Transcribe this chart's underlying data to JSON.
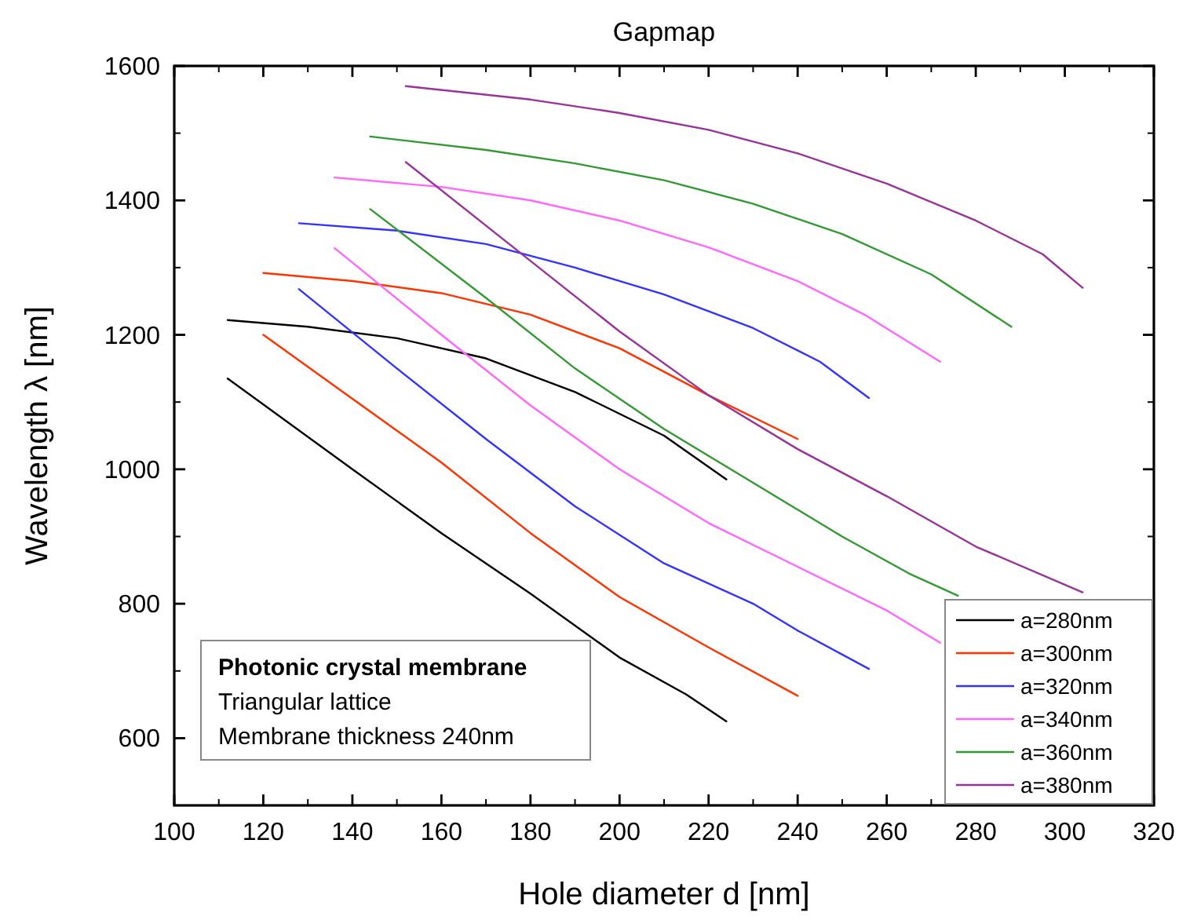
{
  "chart_data": {
    "type": "line",
    "title": "Gapmap",
    "xlabel": "Hole diameter d [nm]",
    "ylabel": "Wavelength λ [nm]",
    "xlim": [
      100,
      320
    ],
    "xticks": [
      100,
      120,
      140,
      160,
      180,
      200,
      220,
      240,
      260,
      280,
      300,
      320
    ],
    "ylim": [
      500,
      1600
    ],
    "yticks": [
      600,
      800,
      1000,
      1200,
      1400,
      1600
    ],
    "legend": "bottom right",
    "marker": "none",
    "line_style": "solid",
    "annotations": [
      "Photonic crystal membrane",
      "Triangular lattice",
      "Membrane thickness 240nm"
    ],
    "series": [
      {
        "name": "a=280nm",
        "color": "#000000",
        "x": [
          112,
          130,
          150,
          170,
          190,
          210,
          224
        ],
        "values": [
          1222,
          1212,
          1195,
          1165,
          1115,
          1050,
          985
        ]
      },
      {
        "color": "#000000",
        "x": [
          112,
          140,
          160,
          180,
          200,
          215,
          224
        ],
        "values": [
          1135,
          1000,
          905,
          815,
          720,
          665,
          625
        ]
      },
      {
        "name": "a=300nm",
        "color": "#ff3300",
        "x": [
          120,
          140,
          160,
          180,
          200,
          220,
          240
        ],
        "values": [
          1292,
          1280,
          1262,
          1230,
          1180,
          1110,
          1045
        ]
      },
      {
        "color": "#ff3300",
        "x": [
          120,
          140,
          160,
          180,
          200,
          220,
          240
        ],
        "values": [
          1200,
          1105,
          1010,
          905,
          810,
          735,
          663
        ]
      },
      {
        "name": "a=320nm",
        "color": "#3333ff",
        "x": [
          128,
          150,
          170,
          190,
          210,
          230,
          245,
          256
        ],
        "values": [
          1366,
          1355,
          1335,
          1300,
          1260,
          1210,
          1160,
          1106
        ]
      },
      {
        "color": "#3333ff",
        "x": [
          128,
          150,
          170,
          190,
          210,
          230,
          240,
          256
        ],
        "values": [
          1268,
          1150,
          1045,
          945,
          860,
          800,
          760,
          703
        ]
      },
      {
        "name": "a=340nm",
        "color": "#ff66ff",
        "x": [
          136,
          160,
          180,
          200,
          220,
          240,
          255,
          272
        ],
        "values": [
          1434,
          1420,
          1400,
          1370,
          1330,
          1280,
          1230,
          1160
        ]
      },
      {
        "color": "#ff66ff",
        "x": [
          136,
          160,
          180,
          200,
          220,
          240,
          260,
          272
        ],
        "values": [
          1329,
          1200,
          1095,
          1000,
          920,
          855,
          790,
          742
        ]
      },
      {
        "name": "a=360nm",
        "color": "#339933",
        "x": [
          144,
          170,
          190,
          210,
          230,
          250,
          270,
          288
        ],
        "values": [
          1495,
          1475,
          1455,
          1430,
          1395,
          1350,
          1290,
          1212
        ]
      },
      {
        "color": "#339933",
        "x": [
          144,
          170,
          190,
          210,
          230,
          250,
          265,
          276
        ],
        "values": [
          1387,
          1255,
          1150,
          1060,
          980,
          900,
          845,
          812
        ]
      },
      {
        "name": "a=380nm",
        "color": "#993399",
        "x": [
          152,
          180,
          200,
          220,
          240,
          260,
          280,
          295,
          304
        ],
        "values": [
          1570,
          1550,
          1530,
          1505,
          1470,
          1425,
          1370,
          1320,
          1270
        ]
      },
      {
        "color": "#993399",
        "x": [
          152,
          180,
          200,
          220,
          240,
          260,
          280,
          304
        ],
        "values": [
          1457,
          1310,
          1205,
          1110,
          1030,
          960,
          885,
          817
        ]
      }
    ]
  }
}
